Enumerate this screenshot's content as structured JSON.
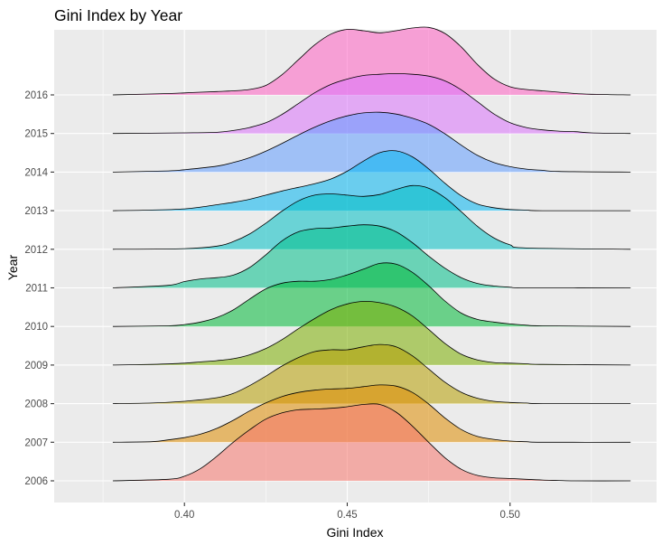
{
  "chart_data": {
    "type": "ridgeline",
    "title": "Gini Index by Year",
    "xlabel": "Gini Index",
    "ylabel": "Year",
    "xlim": [
      0.36,
      0.545
    ],
    "x_ticks": [
      0.4,
      0.45,
      0.5
    ],
    "x_tick_labels": [
      "0.40",
      "0.45",
      "0.50"
    ],
    "grid": true,
    "legend": "none",
    "common_x_range": [
      0.378,
      0.537
    ],
    "series": [
      {
        "name": "2006",
        "color": "#F8766D",
        "peak_height": 2.0,
        "x": [
          0.378,
          0.395,
          0.4,
          0.405,
          0.41,
          0.415,
          0.42,
          0.425,
          0.43,
          0.435,
          0.44,
          0.445,
          0.45,
          0.455,
          0.46,
          0.465,
          0.47,
          0.475,
          0.48,
          0.485,
          0.49,
          0.495,
          0.5,
          0.505,
          0.51,
          0.515,
          0.52,
          0.537
        ],
        "density": [
          0.0,
          0.02,
          0.06,
          0.16,
          0.32,
          0.5,
          0.66,
          0.8,
          0.88,
          0.92,
          0.93,
          0.94,
          0.96,
          0.99,
          0.99,
          0.89,
          0.71,
          0.5,
          0.3,
          0.15,
          0.07,
          0.04,
          0.03,
          0.02,
          0.01,
          0.005,
          0.0,
          0.0
        ]
      },
      {
        "name": "2007",
        "color": "#DE8C00",
        "peak_height": 1.5,
        "x": [
          0.378,
          0.39,
          0.395,
          0.4,
          0.405,
          0.41,
          0.415,
          0.42,
          0.425,
          0.43,
          0.435,
          0.44,
          0.445,
          0.45,
          0.455,
          0.46,
          0.465,
          0.47,
          0.475,
          0.48,
          0.485,
          0.49,
          0.495,
          0.5,
          0.505,
          0.51,
          0.537
        ],
        "density": [
          0.0,
          0.01,
          0.04,
          0.08,
          0.14,
          0.24,
          0.38,
          0.54,
          0.68,
          0.79,
          0.86,
          0.9,
          0.92,
          0.93,
          0.96,
          0.99,
          0.97,
          0.86,
          0.66,
          0.42,
          0.22,
          0.1,
          0.05,
          0.02,
          0.01,
          0.0,
          0.0
        ]
      },
      {
        "name": "2008",
        "color": "#B79F00",
        "peak_height": 1.55,
        "x": [
          0.378,
          0.39,
          0.4,
          0.41,
          0.415,
          0.42,
          0.425,
          0.43,
          0.435,
          0.44,
          0.445,
          0.45,
          0.455,
          0.46,
          0.465,
          0.47,
          0.475,
          0.48,
          0.485,
          0.49,
          0.495,
          0.5,
          0.505,
          0.51,
          0.537
        ],
        "density": [
          0.0,
          0.01,
          0.04,
          0.1,
          0.17,
          0.3,
          0.46,
          0.63,
          0.77,
          0.87,
          0.9,
          0.9,
          0.95,
          0.99,
          0.95,
          0.8,
          0.58,
          0.36,
          0.19,
          0.09,
          0.04,
          0.02,
          0.01,
          0.0,
          0.0
        ]
      },
      {
        "name": "2009",
        "color": "#7CAE00",
        "peak_height": 1.65,
        "x": [
          0.378,
          0.39,
          0.4,
          0.405,
          0.41,
          0.415,
          0.42,
          0.425,
          0.43,
          0.435,
          0.44,
          0.445,
          0.45,
          0.455,
          0.46,
          0.465,
          0.47,
          0.475,
          0.48,
          0.485,
          0.49,
          0.495,
          0.5,
          0.505,
          0.51,
          0.537
        ],
        "density": [
          0.0,
          0.01,
          0.03,
          0.05,
          0.07,
          0.1,
          0.16,
          0.26,
          0.4,
          0.57,
          0.73,
          0.87,
          0.96,
          1.0,
          0.98,
          0.91,
          0.77,
          0.56,
          0.34,
          0.17,
          0.08,
          0.04,
          0.03,
          0.02,
          0.01,
          0.0
        ]
      },
      {
        "name": "2010",
        "color": "#00BA38",
        "peak_height": 1.65,
        "x": [
          0.378,
          0.395,
          0.4,
          0.405,
          0.41,
          0.415,
          0.42,
          0.425,
          0.43,
          0.435,
          0.44,
          0.445,
          0.45,
          0.455,
          0.46,
          0.465,
          0.47,
          0.475,
          0.48,
          0.485,
          0.49,
          0.495,
          0.5,
          0.505,
          0.51,
          0.537
        ],
        "density": [
          0.0,
          0.01,
          0.03,
          0.07,
          0.14,
          0.26,
          0.43,
          0.59,
          0.68,
          0.71,
          0.71,
          0.74,
          0.81,
          0.9,
          0.99,
          0.98,
          0.85,
          0.64,
          0.4,
          0.21,
          0.11,
          0.07,
          0.04,
          0.02,
          0.01,
          0.0
        ]
      },
      {
        "name": "2011",
        "color": "#00C08B",
        "peak_height": 1.65,
        "x": [
          0.378,
          0.395,
          0.4,
          0.405,
          0.41,
          0.415,
          0.42,
          0.425,
          0.43,
          0.435,
          0.44,
          0.445,
          0.45,
          0.455,
          0.46,
          0.465,
          0.47,
          0.475,
          0.48,
          0.485,
          0.49,
          0.495,
          0.5,
          0.505,
          0.537
        ],
        "density": [
          0.0,
          0.04,
          0.1,
          0.14,
          0.16,
          0.2,
          0.32,
          0.52,
          0.74,
          0.88,
          0.93,
          0.94,
          0.97,
          0.99,
          0.97,
          0.88,
          0.71,
          0.5,
          0.31,
          0.16,
          0.07,
          0.03,
          0.01,
          0.0,
          0.0
        ]
      },
      {
        "name": "2012",
        "color": "#00BFC4",
        "peak_height": 1.65,
        "x": [
          0.378,
          0.4,
          0.41,
          0.415,
          0.42,
          0.425,
          0.43,
          0.435,
          0.44,
          0.445,
          0.45,
          0.455,
          0.46,
          0.465,
          0.47,
          0.475,
          0.48,
          0.485,
          0.49,
          0.495,
          0.5,
          0.505,
          0.537
        ],
        "density": [
          0.0,
          0.01,
          0.05,
          0.12,
          0.24,
          0.41,
          0.6,
          0.76,
          0.85,
          0.87,
          0.85,
          0.83,
          0.86,
          0.94,
          1.0,
          0.96,
          0.81,
          0.59,
          0.36,
          0.18,
          0.07,
          0.02,
          0.0
        ]
      },
      {
        "name": "2013",
        "color": "#00B4F0",
        "peak_height": 1.55,
        "x": [
          0.378,
          0.39,
          0.4,
          0.405,
          0.41,
          0.415,
          0.42,
          0.425,
          0.43,
          0.435,
          0.44,
          0.445,
          0.45,
          0.455,
          0.46,
          0.465,
          0.47,
          0.475,
          0.48,
          0.485,
          0.49,
          0.495,
          0.5,
          0.505,
          0.51,
          0.537
        ],
        "density": [
          0.0,
          0.01,
          0.03,
          0.06,
          0.1,
          0.14,
          0.19,
          0.26,
          0.33,
          0.39,
          0.45,
          0.53,
          0.66,
          0.83,
          0.97,
          1.0,
          0.9,
          0.7,
          0.46,
          0.25,
          0.11,
          0.05,
          0.02,
          0.01,
          0.0,
          0.0
        ]
      },
      {
        "name": "2014",
        "color": "#619CFF",
        "peak_height": 1.55,
        "x": [
          0.378,
          0.395,
          0.4,
          0.41,
          0.415,
          0.42,
          0.425,
          0.43,
          0.435,
          0.44,
          0.445,
          0.45,
          0.455,
          0.46,
          0.465,
          0.47,
          0.475,
          0.48,
          0.485,
          0.49,
          0.495,
          0.5,
          0.505,
          0.51,
          0.515,
          0.537
        ],
        "density": [
          0.0,
          0.02,
          0.04,
          0.1,
          0.16,
          0.24,
          0.35,
          0.48,
          0.62,
          0.75,
          0.86,
          0.94,
          0.99,
          1.0,
          0.97,
          0.9,
          0.8,
          0.64,
          0.45,
          0.28,
          0.16,
          0.09,
          0.05,
          0.03,
          0.01,
          0.0
        ]
      },
      {
        "name": "2015",
        "color": "#DB72FB",
        "peak_height": 1.55,
        "x": [
          0.378,
          0.4,
          0.41,
          0.415,
          0.42,
          0.425,
          0.43,
          0.435,
          0.44,
          0.445,
          0.45,
          0.455,
          0.46,
          0.465,
          0.47,
          0.475,
          0.48,
          0.485,
          0.49,
          0.495,
          0.5,
          0.505,
          0.51,
          0.515,
          0.52,
          0.525,
          0.537
        ],
        "density": [
          0.0,
          0.01,
          0.02,
          0.05,
          0.1,
          0.18,
          0.32,
          0.5,
          0.68,
          0.82,
          0.91,
          0.97,
          0.99,
          1.0,
          0.99,
          0.96,
          0.88,
          0.73,
          0.53,
          0.33,
          0.18,
          0.1,
          0.06,
          0.04,
          0.03,
          0.01,
          0.0
        ]
      },
      {
        "name": "2016",
        "color": "#FF61C3",
        "peak_height": 1.75,
        "x": [
          0.378,
          0.395,
          0.4,
          0.405,
          0.41,
          0.415,
          0.42,
          0.425,
          0.43,
          0.435,
          0.44,
          0.445,
          0.45,
          0.455,
          0.46,
          0.465,
          0.47,
          0.475,
          0.48,
          0.485,
          0.49,
          0.495,
          0.5,
          0.505,
          0.51,
          0.515,
          0.52,
          0.525,
          0.53,
          0.537
        ],
        "density": [
          0.0,
          0.02,
          0.03,
          0.04,
          0.05,
          0.06,
          0.08,
          0.14,
          0.3,
          0.52,
          0.74,
          0.9,
          0.97,
          0.95,
          0.92,
          0.95,
          0.99,
          1.0,
          0.91,
          0.71,
          0.45,
          0.24,
          0.12,
          0.08,
          0.06,
          0.04,
          0.02,
          0.01,
          0.005,
          0.0
        ]
      }
    ]
  }
}
